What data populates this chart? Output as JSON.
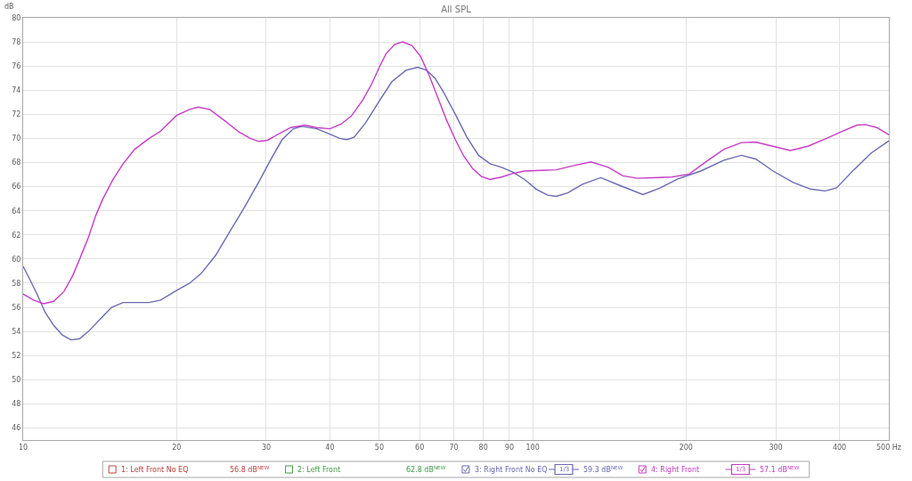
{
  "chart_data": {
    "type": "line",
    "title": "All SPL",
    "ylabel": "dB",
    "log": "x",
    "grid": true,
    "legend": "bottom",
    "xlim": [
      10,
      500
    ],
    "xticks": [
      10,
      20,
      30,
      40,
      50,
      60,
      70,
      80,
      90,
      100,
      200,
      300,
      400,
      {
        "value": 500,
        "label": "500 Hz"
      }
    ],
    "ylim": [
      45,
      80
    ],
    "yticks": [
      46,
      48,
      50,
      52,
      54,
      56,
      58,
      60,
      62,
      64,
      66,
      68,
      70,
      72,
      74,
      76,
      78,
      80
    ],
    "series": [
      {
        "name": "1: Left Front No EQ",
        "color": "#c04040"
      },
      {
        "name": "2: Left Front",
        "color": "#3f9f3f"
      },
      {
        "name": "3: Right Front No EQ",
        "color": "#6a6ab4",
        "x": [
          10,
          10.28,
          10.62,
          11.04,
          11.48,
          11.94,
          12.42,
          12.91,
          13.43,
          14.15,
          14.91,
          15.71,
          16.55,
          17.67,
          18.61,
          20,
          21.21,
          22.35,
          23.86,
          25.46,
          27.19,
          29.01,
          30.57,
          32.22,
          33.93,
          35.3,
          37.7,
          40,
          41.8,
          43.2,
          44.6,
          47,
          50,
          52.9,
          56.4,
          59.5,
          61.9,
          64.3,
          66.9,
          70.5,
          74.3,
          78.3,
          82.5,
          86.9,
          91.5,
          96.4,
          101.6,
          107,
          111.3,
          117.3,
          125.2,
          136,
          148.3,
          164.6,
          178.1,
          192.6,
          213.8,
          237.3,
          256.7,
          274,
          296.3,
          324.6,
          351.1,
          374.7,
          394.8,
          426.9,
          461.8,
          500
        ],
        "values": [
          59.4,
          58.4,
          57.2,
          55.6,
          54.5,
          53.7,
          53.3,
          53.4,
          54.0,
          55.0,
          56.0,
          56.4,
          56.4,
          56.4,
          56.6,
          57.4,
          58.0,
          58.8,
          60.3,
          62.3,
          64.3,
          66.4,
          68.2,
          69.9,
          70.8,
          71.0,
          70.8,
          70.35,
          70.0,
          69.9,
          70.1,
          71.3,
          73.1,
          74.7,
          75.65,
          75.9,
          75.65,
          75.0,
          73.8,
          72.0,
          70.1,
          68.6,
          67.9,
          67.6,
          67.2,
          66.6,
          65.8,
          65.3,
          65.2,
          65.5,
          66.2,
          66.75,
          66.1,
          65.35,
          65.9,
          66.65,
          67.3,
          68.2,
          68.6,
          68.3,
          67.3,
          66.35,
          65.8,
          65.65,
          65.9,
          67.4,
          68.8,
          69.8
        ]
      },
      {
        "name": "4: Right Front",
        "color": "#c83cc8",
        "x": [
          10,
          10.48,
          10.97,
          11.48,
          12.02,
          12.5,
          12.91,
          13.43,
          13.88,
          14.34,
          15.01,
          15.71,
          16.55,
          17.67,
          18.61,
          20,
          21.21,
          22.06,
          23.24,
          24.81,
          26.48,
          27.9,
          29.01,
          30.17,
          31.8,
          33.49,
          35.75,
          37.67,
          40,
          42.09,
          44.06,
          46.42,
          48.28,
          50,
          51.52,
          53.58,
          55.56,
          57.94,
          60.26,
          62.67,
          65.18,
          67.79,
          70.5,
          73.32,
          76.25,
          79.3,
          82.46,
          86.87,
          91.52,
          96.41,
          104.3,
          111.3,
          120.4,
          130.2,
          140.8,
          150.3,
          160.4,
          173.5,
          187.7,
          202.9,
          219.4,
          237.3,
          256.7,
          274,
          296.3,
          320.4,
          346.5,
          374.7,
          405.2,
          432.6,
          449.9,
          474,
          500
        ],
        "values": [
          57.1,
          56.6,
          56.3,
          56.5,
          57.3,
          58.6,
          60.0,
          61.8,
          63.6,
          65.0,
          66.6,
          67.9,
          69.1,
          70.0,
          70.6,
          71.9,
          72.4,
          72.6,
          72.4,
          71.5,
          70.55,
          70.0,
          69.75,
          69.85,
          70.4,
          70.9,
          71.1,
          70.9,
          70.8,
          71.2,
          71.85,
          73.2,
          74.5,
          75.9,
          77.0,
          77.8,
          78.0,
          77.7,
          76.8,
          75.2,
          73.35,
          71.5,
          69.9,
          68.5,
          67.5,
          66.85,
          66.6,
          66.8,
          67.1,
          67.3,
          67.35,
          67.4,
          67.75,
          68.05,
          67.6,
          66.9,
          66.7,
          66.75,
          66.8,
          67.05,
          68.1,
          69.1,
          69.65,
          69.7,
          69.35,
          69.0,
          69.35,
          69.95,
          70.6,
          71.1,
          71.15,
          70.9,
          70.3
        ]
      }
    ],
    "annotations": [
      "56.8 dB$^{NEW}$",
      "62.8 dB$^{NEW}$",
      "59.3 dB$^{NEW}$",
      "57.1 dB$^{NEW}$",
      "1/3",
      "1/3"
    ]
  }
}
